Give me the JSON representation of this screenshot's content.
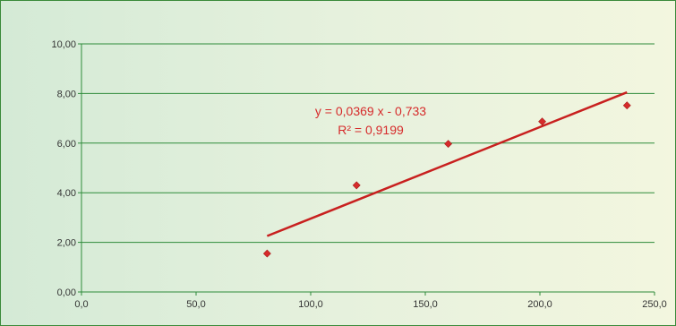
{
  "chart_data": {
    "type": "scatter",
    "title": "",
    "xlabel": "",
    "ylabel": "",
    "xlim": [
      0,
      250
    ],
    "ylim": [
      0,
      10
    ],
    "x_ticks": [
      "0,0",
      "50,0",
      "100,0",
      "150,0",
      "200,0",
      "250,0"
    ],
    "y_ticks": [
      "0,00",
      "2,00",
      "4,00",
      "6,00",
      "8,00",
      "10,00"
    ],
    "grid": "horizontal",
    "legend": "none",
    "points": [
      {
        "x": 81,
        "y": 1.55
      },
      {
        "x": 120,
        "y": 4.3
      },
      {
        "x": 160,
        "y": 5.97
      },
      {
        "x": 201,
        "y": 6.87
      },
      {
        "x": 238,
        "y": 7.52
      }
    ],
    "trendline": {
      "type": "linear",
      "slope": 0.0369,
      "intercept": -0.733,
      "x_from": 81,
      "x_to": 238,
      "equation": "y = 0,0369 x - 0,733",
      "r_squared": "R² = 0,9199"
    },
    "colors": {
      "marker": "#d62b2b",
      "trendline": "#c8201f",
      "grid": "#2e8b3a",
      "axis": "#2e8b3a",
      "label_text": "#d62b2b"
    }
  }
}
